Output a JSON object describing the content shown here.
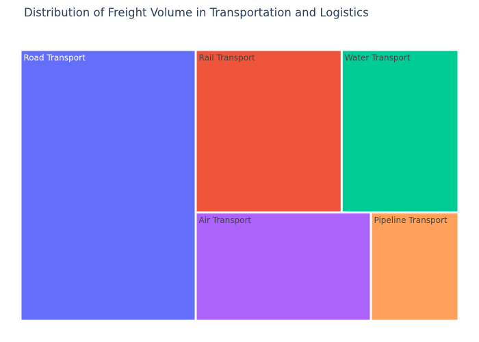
{
  "chart_data": {
    "type": "treemap",
    "title": "Distribution of Freight Volume in Transportation and Logistics",
    "tiles": [
      {
        "label": "Road Transport",
        "value": 40,
        "color": "#636efa",
        "text_color": "#ffffff"
      },
      {
        "label": "Rail Transport",
        "value": 20,
        "color": "#ef553b",
        "text_color": "#444444"
      },
      {
        "label": "Water Transport",
        "value": 16,
        "color": "#00cc96",
        "text_color": "#444444"
      },
      {
        "label": "Air Transport",
        "value": 16,
        "color": "#ab63fa",
        "text_color": "#444444"
      },
      {
        "label": "Pipeline Transport",
        "value": 8,
        "color": "#ffa15a",
        "text_color": "#444444"
      }
    ]
  }
}
